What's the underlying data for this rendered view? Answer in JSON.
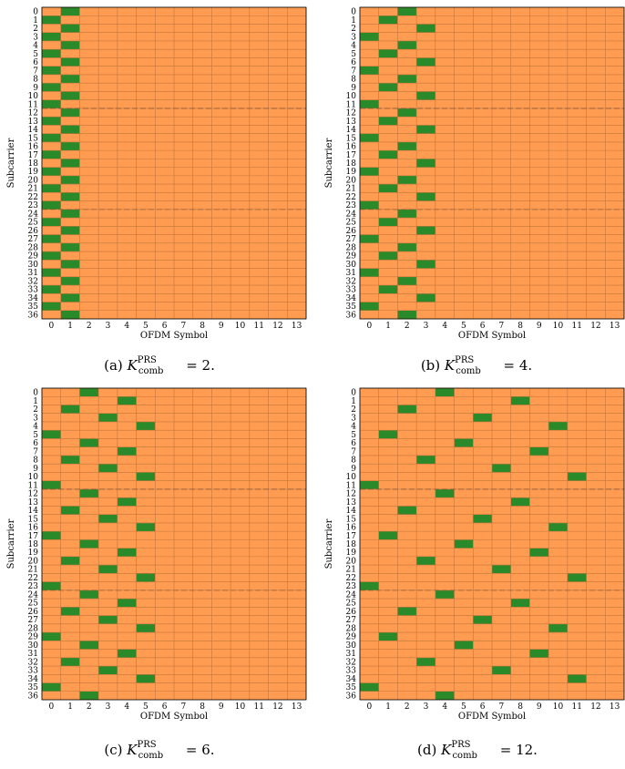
{
  "colors": {
    "background": "#FF9C52",
    "prs": "#2A8A2A",
    "grid": "#C4753A",
    "slot_divider": "#8A5A3A"
  },
  "chart_data": [
    {
      "type": "heatmap",
      "caption": {
        "prefix": "(a)",
        "symbol": "K",
        "sup": "PRS",
        "sub": "comb",
        "value": "= 2."
      },
      "xlabel": "OFDM Symbol",
      "ylabel": "Subcarrier",
      "x_ticks": [
        0,
        1,
        2,
        3,
        4,
        5,
        6,
        7,
        8,
        9,
        10,
        11,
        12,
        13
      ],
      "y_ticks": [
        0,
        1,
        2,
        3,
        4,
        5,
        6,
        7,
        8,
        9,
        10,
        11,
        12,
        13,
        14,
        15,
        16,
        17,
        18,
        19,
        20,
        21,
        22,
        23,
        24,
        25,
        26,
        27,
        28,
        29,
        30,
        31,
        32,
        33,
        34,
        35,
        36
      ],
      "xlim": [
        0,
        13
      ],
      "ylim": [
        0,
        36
      ],
      "dashed_divider_after_subcarriers": [
        11,
        23
      ],
      "comb": 2,
      "symbols": 2,
      "prs_cells": [
        [
          0,
          1
        ],
        [
          1,
          0
        ]
      ]
    },
    {
      "type": "heatmap",
      "caption": {
        "prefix": "(b)",
        "symbol": "K",
        "sup": "PRS",
        "sub": "comb",
        "value": "= 4."
      },
      "xlabel": "OFDM Symbol",
      "ylabel": "Subcarrier",
      "x_ticks": [
        0,
        1,
        2,
        3,
        4,
        5,
        6,
        7,
        8,
        9,
        10,
        11,
        12,
        13
      ],
      "y_ticks": [
        0,
        1,
        2,
        3,
        4,
        5,
        6,
        7,
        8,
        9,
        10,
        11,
        12,
        13,
        14,
        15,
        16,
        17,
        18,
        19,
        20,
        21,
        22,
        23,
        24,
        25,
        26,
        27,
        28,
        29,
        30,
        31,
        32,
        33,
        34,
        35,
        36
      ],
      "xlim": [
        0,
        13
      ],
      "ylim": [
        0,
        36
      ],
      "dashed_divider_after_subcarriers": [
        11,
        23
      ],
      "comb": 4,
      "symbols": 4,
      "prs_cells": [
        [
          0,
          2
        ],
        [
          1,
          1
        ],
        [
          2,
          3
        ],
        [
          3,
          0
        ]
      ]
    },
    {
      "type": "heatmap",
      "caption": {
        "prefix": "(c)",
        "symbol": "K",
        "sup": "PRS",
        "sub": "comb",
        "value": "= 6."
      },
      "xlabel": "OFDM Symbol",
      "ylabel": "Subcarrier",
      "x_ticks": [
        0,
        1,
        2,
        3,
        4,
        5,
        6,
        7,
        8,
        9,
        10,
        11,
        12,
        13
      ],
      "y_ticks": [
        0,
        1,
        2,
        3,
        4,
        5,
        6,
        7,
        8,
        9,
        10,
        11,
        12,
        13,
        14,
        15,
        16,
        17,
        18,
        19,
        20,
        21,
        22,
        23,
        24,
        25,
        26,
        27,
        28,
        29,
        30,
        31,
        32,
        33,
        34,
        35,
        36
      ],
      "xlim": [
        0,
        13
      ],
      "ylim": [
        0,
        36
      ],
      "dashed_divider_after_subcarriers": [
        11,
        23
      ],
      "comb": 6,
      "symbols": 6,
      "prs_cells": [
        [
          0,
          2
        ],
        [
          1,
          4
        ],
        [
          2,
          1
        ],
        [
          3,
          3
        ],
        [
          4,
          5
        ],
        [
          5,
          0
        ]
      ]
    },
    {
      "type": "heatmap",
      "caption": {
        "prefix": "(d)",
        "symbol": "K",
        "sup": "PRS",
        "sub": "comb",
        "value": "= 12."
      },
      "xlabel": "OFDM Symbol",
      "ylabel": "Subcarrier",
      "x_ticks": [
        0,
        1,
        2,
        3,
        4,
        5,
        6,
        7,
        8,
        9,
        10,
        11,
        12,
        13
      ],
      "y_ticks": [
        0,
        1,
        2,
        3,
        4,
        5,
        6,
        7,
        8,
        9,
        10,
        11,
        12,
        13,
        14,
        15,
        16,
        17,
        18,
        19,
        20,
        21,
        22,
        23,
        24,
        25,
        26,
        27,
        28,
        29,
        30,
        31,
        32,
        33,
        34,
        35,
        36
      ],
      "xlim": [
        0,
        13
      ],
      "ylim": [
        0,
        36
      ],
      "dashed_divider_after_subcarriers": [
        11,
        23
      ],
      "comb": 12,
      "symbols": 12,
      "prs_cells": [
        [
          0,
          4
        ],
        [
          1,
          8
        ],
        [
          2,
          2
        ],
        [
          3,
          6
        ],
        [
          4,
          10
        ],
        [
          5,
          1
        ],
        [
          6,
          5
        ],
        [
          7,
          9
        ],
        [
          8,
          3
        ],
        [
          9,
          7
        ],
        [
          10,
          11
        ],
        [
          11,
          0
        ]
      ]
    }
  ]
}
